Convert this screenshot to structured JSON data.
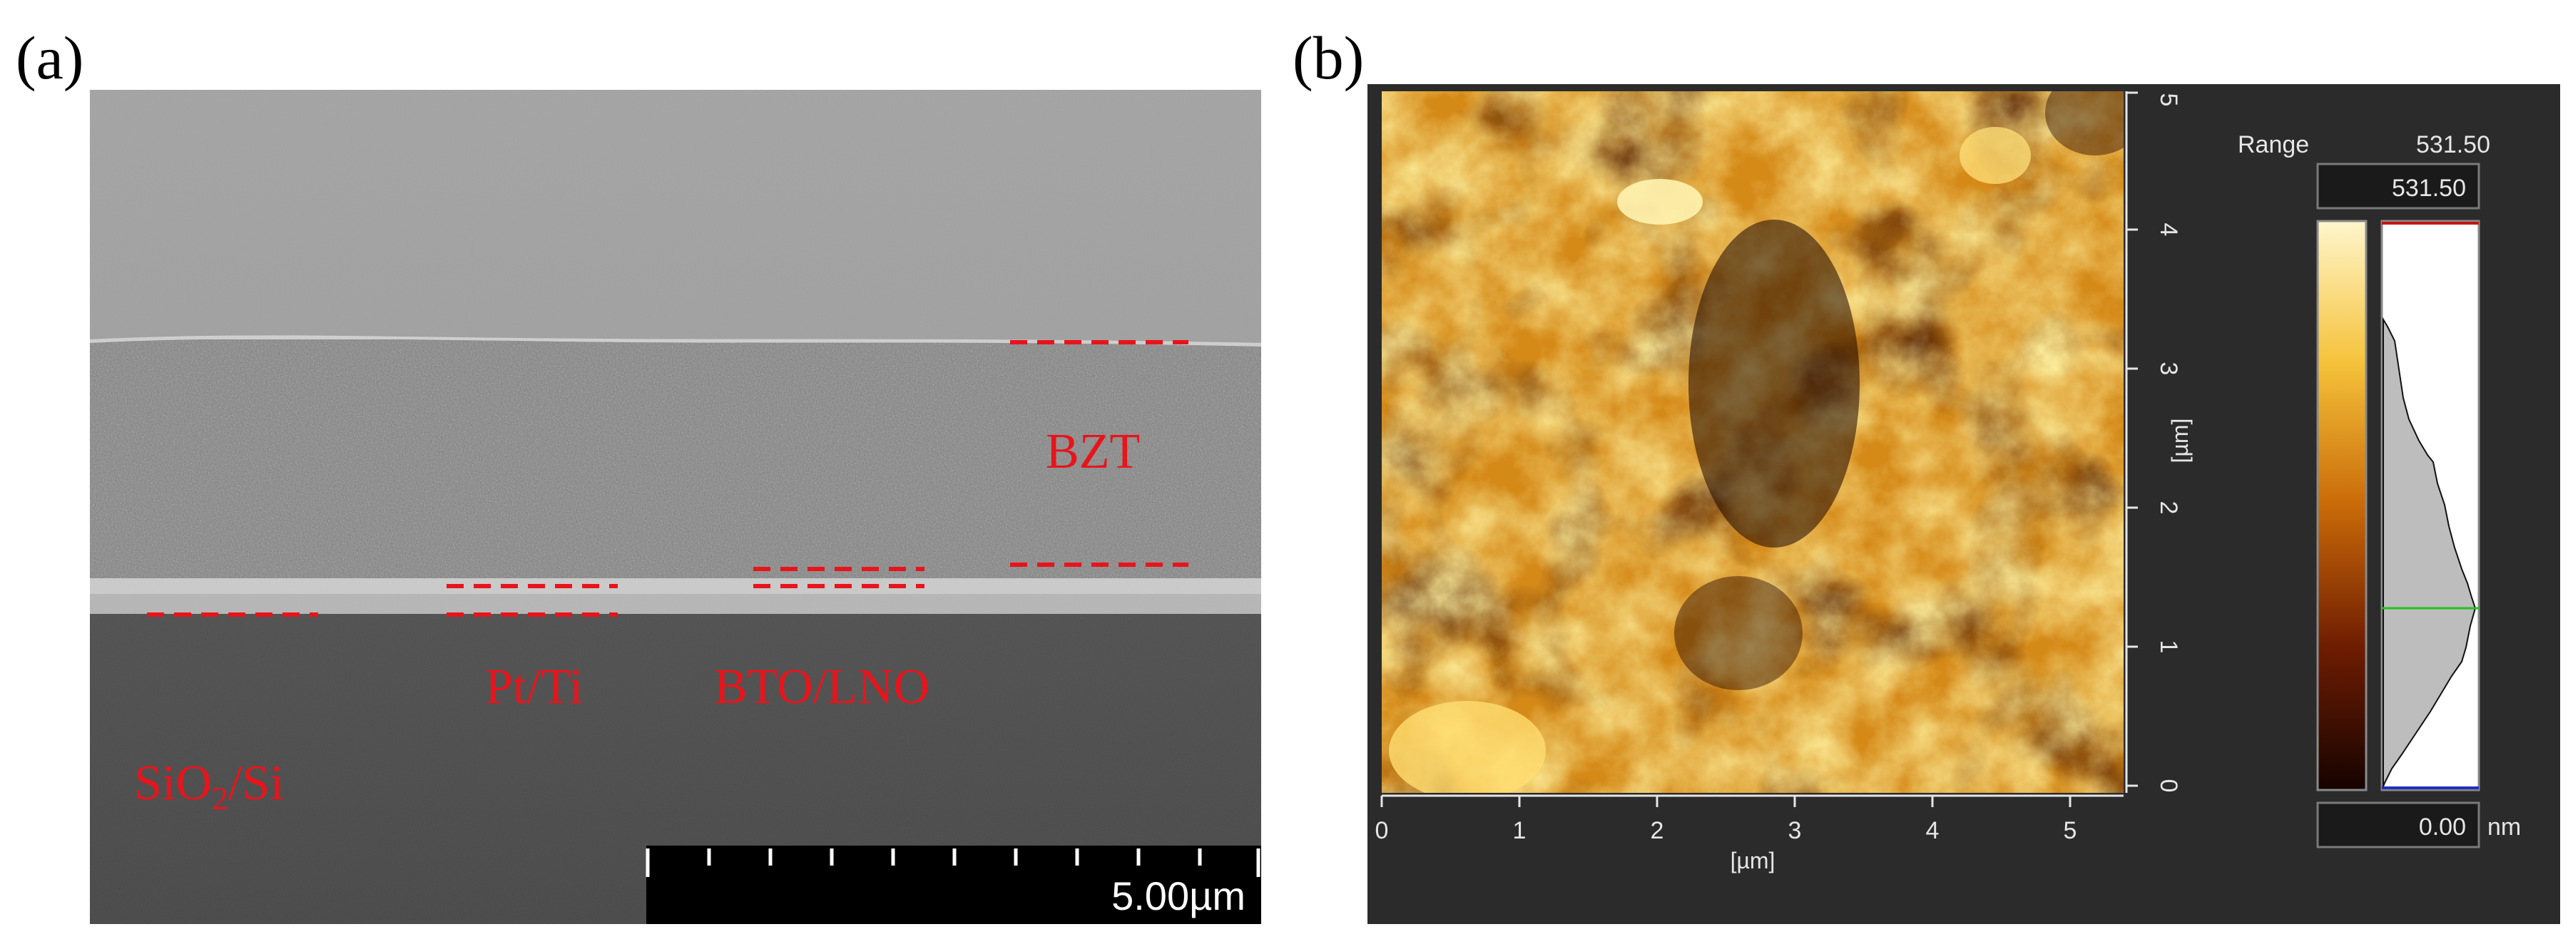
{
  "panels": {
    "a": {
      "label": "(a)",
      "layers": {
        "top": "BZT",
        "interface": "BTO/LNO",
        "electrode": "Pt/Ti",
        "substrate_main": "SiO",
        "substrate_sub": "2",
        "substrate_tail": "/Si"
      },
      "scale_bar": "5.00µm"
    },
    "b": {
      "label": "(b)",
      "range_label": "Range",
      "range_value": "531.50",
      "max_box": "531.50",
      "min_box": "0.00",
      "unit": "nm",
      "x_ticks": [
        "0",
        "1",
        "2",
        "3",
        "4",
        "5"
      ],
      "y_ticks": [
        "0",
        "1",
        "2",
        "3",
        "4",
        "5"
      ],
      "x_axis_label": "[µm]",
      "y_axis_label": "[µm]"
    }
  },
  "colors": {
    "annotation_red": "#e8141b",
    "afm_background": "#2b2b2b",
    "afm_cursor_green": "#22c020",
    "afm_max_marker": "#c01818"
  }
}
